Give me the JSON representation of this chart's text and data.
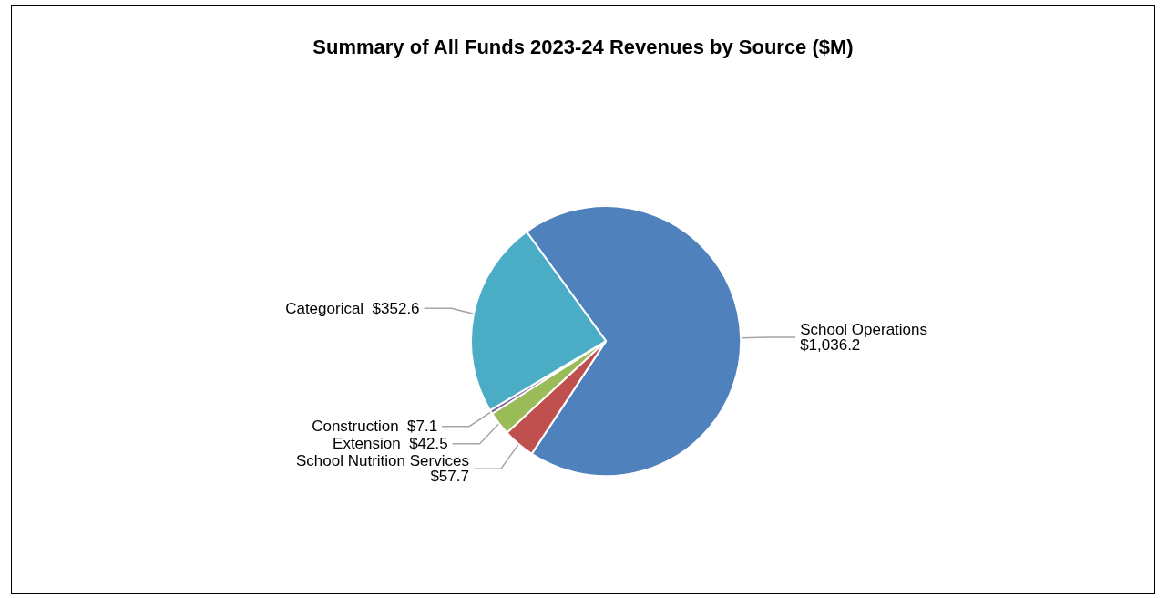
{
  "chart_data": {
    "type": "pie",
    "title": "Summary of All Funds 2023-24 Revenues by Source ($M)",
    "categories": [
      "School Operations",
      "School Nutrition Services",
      "Extension",
      "Construction",
      "Categorical"
    ],
    "values": [
      1036.2,
      57.7,
      42.5,
      7.1,
      352.6
    ],
    "value_labels": [
      "$1,036.2",
      "$57.7",
      "$42.5",
      "$7.1",
      "$352.6"
    ],
    "colors": [
      "#4f81bd",
      "#c0504d",
      "#9bbb59",
      "#8064a2",
      "#4bacc6"
    ],
    "legend": false
  }
}
